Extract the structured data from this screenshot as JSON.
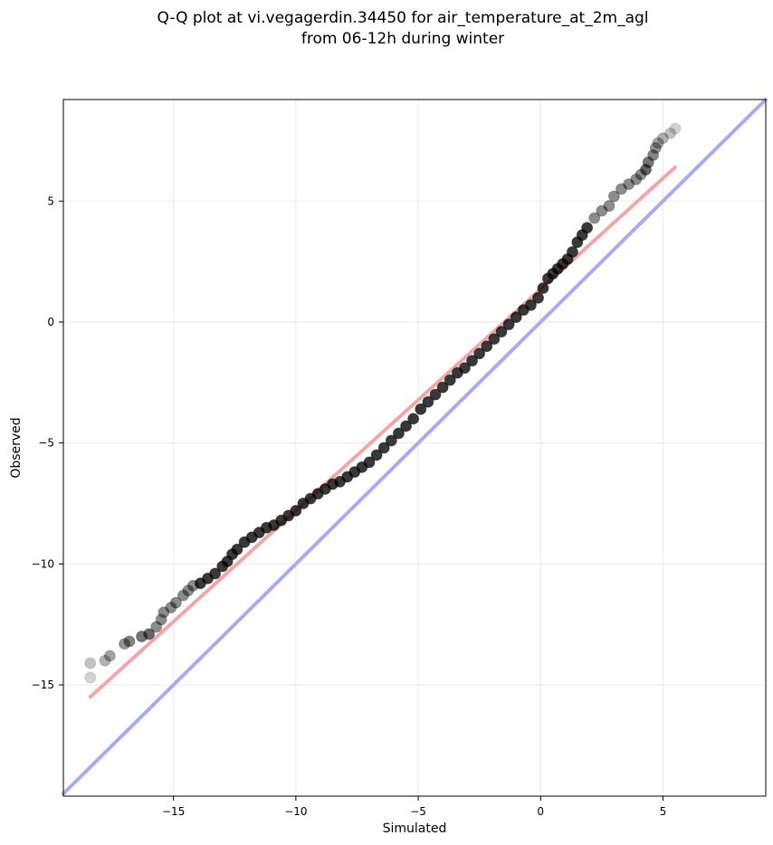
{
  "chart_data": {
    "type": "scatter",
    "title": "Q-Q plot at vi.vegagerdin.34450 for air_temperature_at_2m_agl",
    "subtitle": "from 06-12h during winter",
    "xlabel": "Simulated",
    "ylabel": "Observed",
    "xlim": [
      -19.5,
      9.2
    ],
    "ylim": [
      -19.6,
      9.2
    ],
    "x_ticks": [
      -15,
      -10,
      -5,
      0,
      5
    ],
    "y_ticks": [
      -15,
      -10,
      -5,
      0,
      5
    ],
    "grid": true,
    "colors": {
      "points": "#000000",
      "fit_line": "#f4a6a6",
      "identity_line": "#aaaaf2"
    },
    "series": [
      {
        "type": "scatter",
        "points": [
          [
            -18.4,
            -14.7
          ],
          [
            -18.4,
            -14.1
          ],
          [
            -17.8,
            -14.0
          ],
          [
            -17.6,
            -13.8
          ],
          [
            -17.0,
            -13.3
          ],
          [
            -16.8,
            -13.2
          ],
          [
            -16.3,
            -13.0
          ],
          [
            -16.0,
            -12.9
          ],
          [
            -15.7,
            -12.6
          ],
          [
            -15.5,
            -12.3
          ],
          [
            -15.4,
            -12.0
          ],
          [
            -15.1,
            -11.8
          ],
          [
            -14.9,
            -11.6
          ],
          [
            -14.6,
            -11.3
          ],
          [
            -14.4,
            -11.1
          ],
          [
            -14.2,
            -10.9
          ],
          [
            -13.9,
            -10.8
          ],
          [
            -13.6,
            -10.6
          ],
          [
            -13.3,
            -10.4
          ],
          [
            -13.0,
            -10.1
          ],
          [
            -12.8,
            -9.9
          ],
          [
            -12.6,
            -9.6
          ],
          [
            -12.4,
            -9.4
          ],
          [
            -12.1,
            -9.1
          ],
          [
            -11.8,
            -8.9
          ],
          [
            -11.5,
            -8.7
          ],
          [
            -11.2,
            -8.5
          ],
          [
            -10.9,
            -8.4
          ],
          [
            -10.6,
            -8.2
          ],
          [
            -10.3,
            -8.0
          ],
          [
            -10.0,
            -7.8
          ],
          [
            -9.7,
            -7.5
          ],
          [
            -9.4,
            -7.3
          ],
          [
            -9.1,
            -7.1
          ],
          [
            -8.8,
            -6.9
          ],
          [
            -8.5,
            -6.7
          ],
          [
            -8.2,
            -6.6
          ],
          [
            -7.9,
            -6.4
          ],
          [
            -7.6,
            -6.2
          ],
          [
            -7.3,
            -6.0
          ],
          [
            -7.0,
            -5.8
          ],
          [
            -6.7,
            -5.5
          ],
          [
            -6.4,
            -5.2
          ],
          [
            -6.1,
            -4.9
          ],
          [
            -5.8,
            -4.6
          ],
          [
            -5.5,
            -4.3
          ],
          [
            -5.2,
            -4.0
          ],
          [
            -4.9,
            -3.6
          ],
          [
            -4.6,
            -3.3
          ],
          [
            -4.3,
            -3.0
          ],
          [
            -4.0,
            -2.7
          ],
          [
            -3.7,
            -2.4
          ],
          [
            -3.4,
            -2.1
          ],
          [
            -3.1,
            -1.9
          ],
          [
            -2.8,
            -1.6
          ],
          [
            -2.5,
            -1.3
          ],
          [
            -2.2,
            -1.0
          ],
          [
            -1.9,
            -0.7
          ],
          [
            -1.6,
            -0.4
          ],
          [
            -1.3,
            -0.1
          ],
          [
            -1.0,
            0.2
          ],
          [
            -0.7,
            0.5
          ],
          [
            -0.4,
            0.7
          ],
          [
            -0.1,
            1.0
          ],
          [
            0.1,
            1.4
          ],
          [
            0.3,
            1.8
          ],
          [
            0.5,
            2.0
          ],
          [
            0.7,
            2.2
          ],
          [
            0.9,
            2.4
          ],
          [
            1.1,
            2.6
          ],
          [
            1.3,
            2.9
          ],
          [
            1.5,
            3.3
          ],
          [
            1.7,
            3.6
          ],
          [
            1.9,
            3.9
          ],
          [
            2.2,
            4.3
          ],
          [
            2.5,
            4.6
          ],
          [
            2.8,
            4.8
          ],
          [
            3.0,
            5.2
          ],
          [
            3.3,
            5.5
          ],
          [
            3.6,
            5.7
          ],
          [
            3.9,
            5.9
          ],
          [
            4.1,
            6.1
          ],
          [
            4.3,
            6.3
          ],
          [
            4.4,
            6.6
          ],
          [
            4.6,
            6.9
          ],
          [
            4.7,
            7.2
          ],
          [
            4.8,
            7.4
          ],
          [
            5.0,
            7.6
          ],
          [
            5.3,
            7.8
          ],
          [
            5.5,
            8.0
          ]
        ]
      },
      {
        "type": "line",
        "points": [
          [
            -18.4,
            -15.5
          ],
          [
            5.5,
            6.4
          ]
        ]
      },
      {
        "type": "line",
        "points": [
          [
            -19.5,
            -19.5
          ],
          [
            9.2,
            9.2
          ]
        ]
      }
    ]
  }
}
